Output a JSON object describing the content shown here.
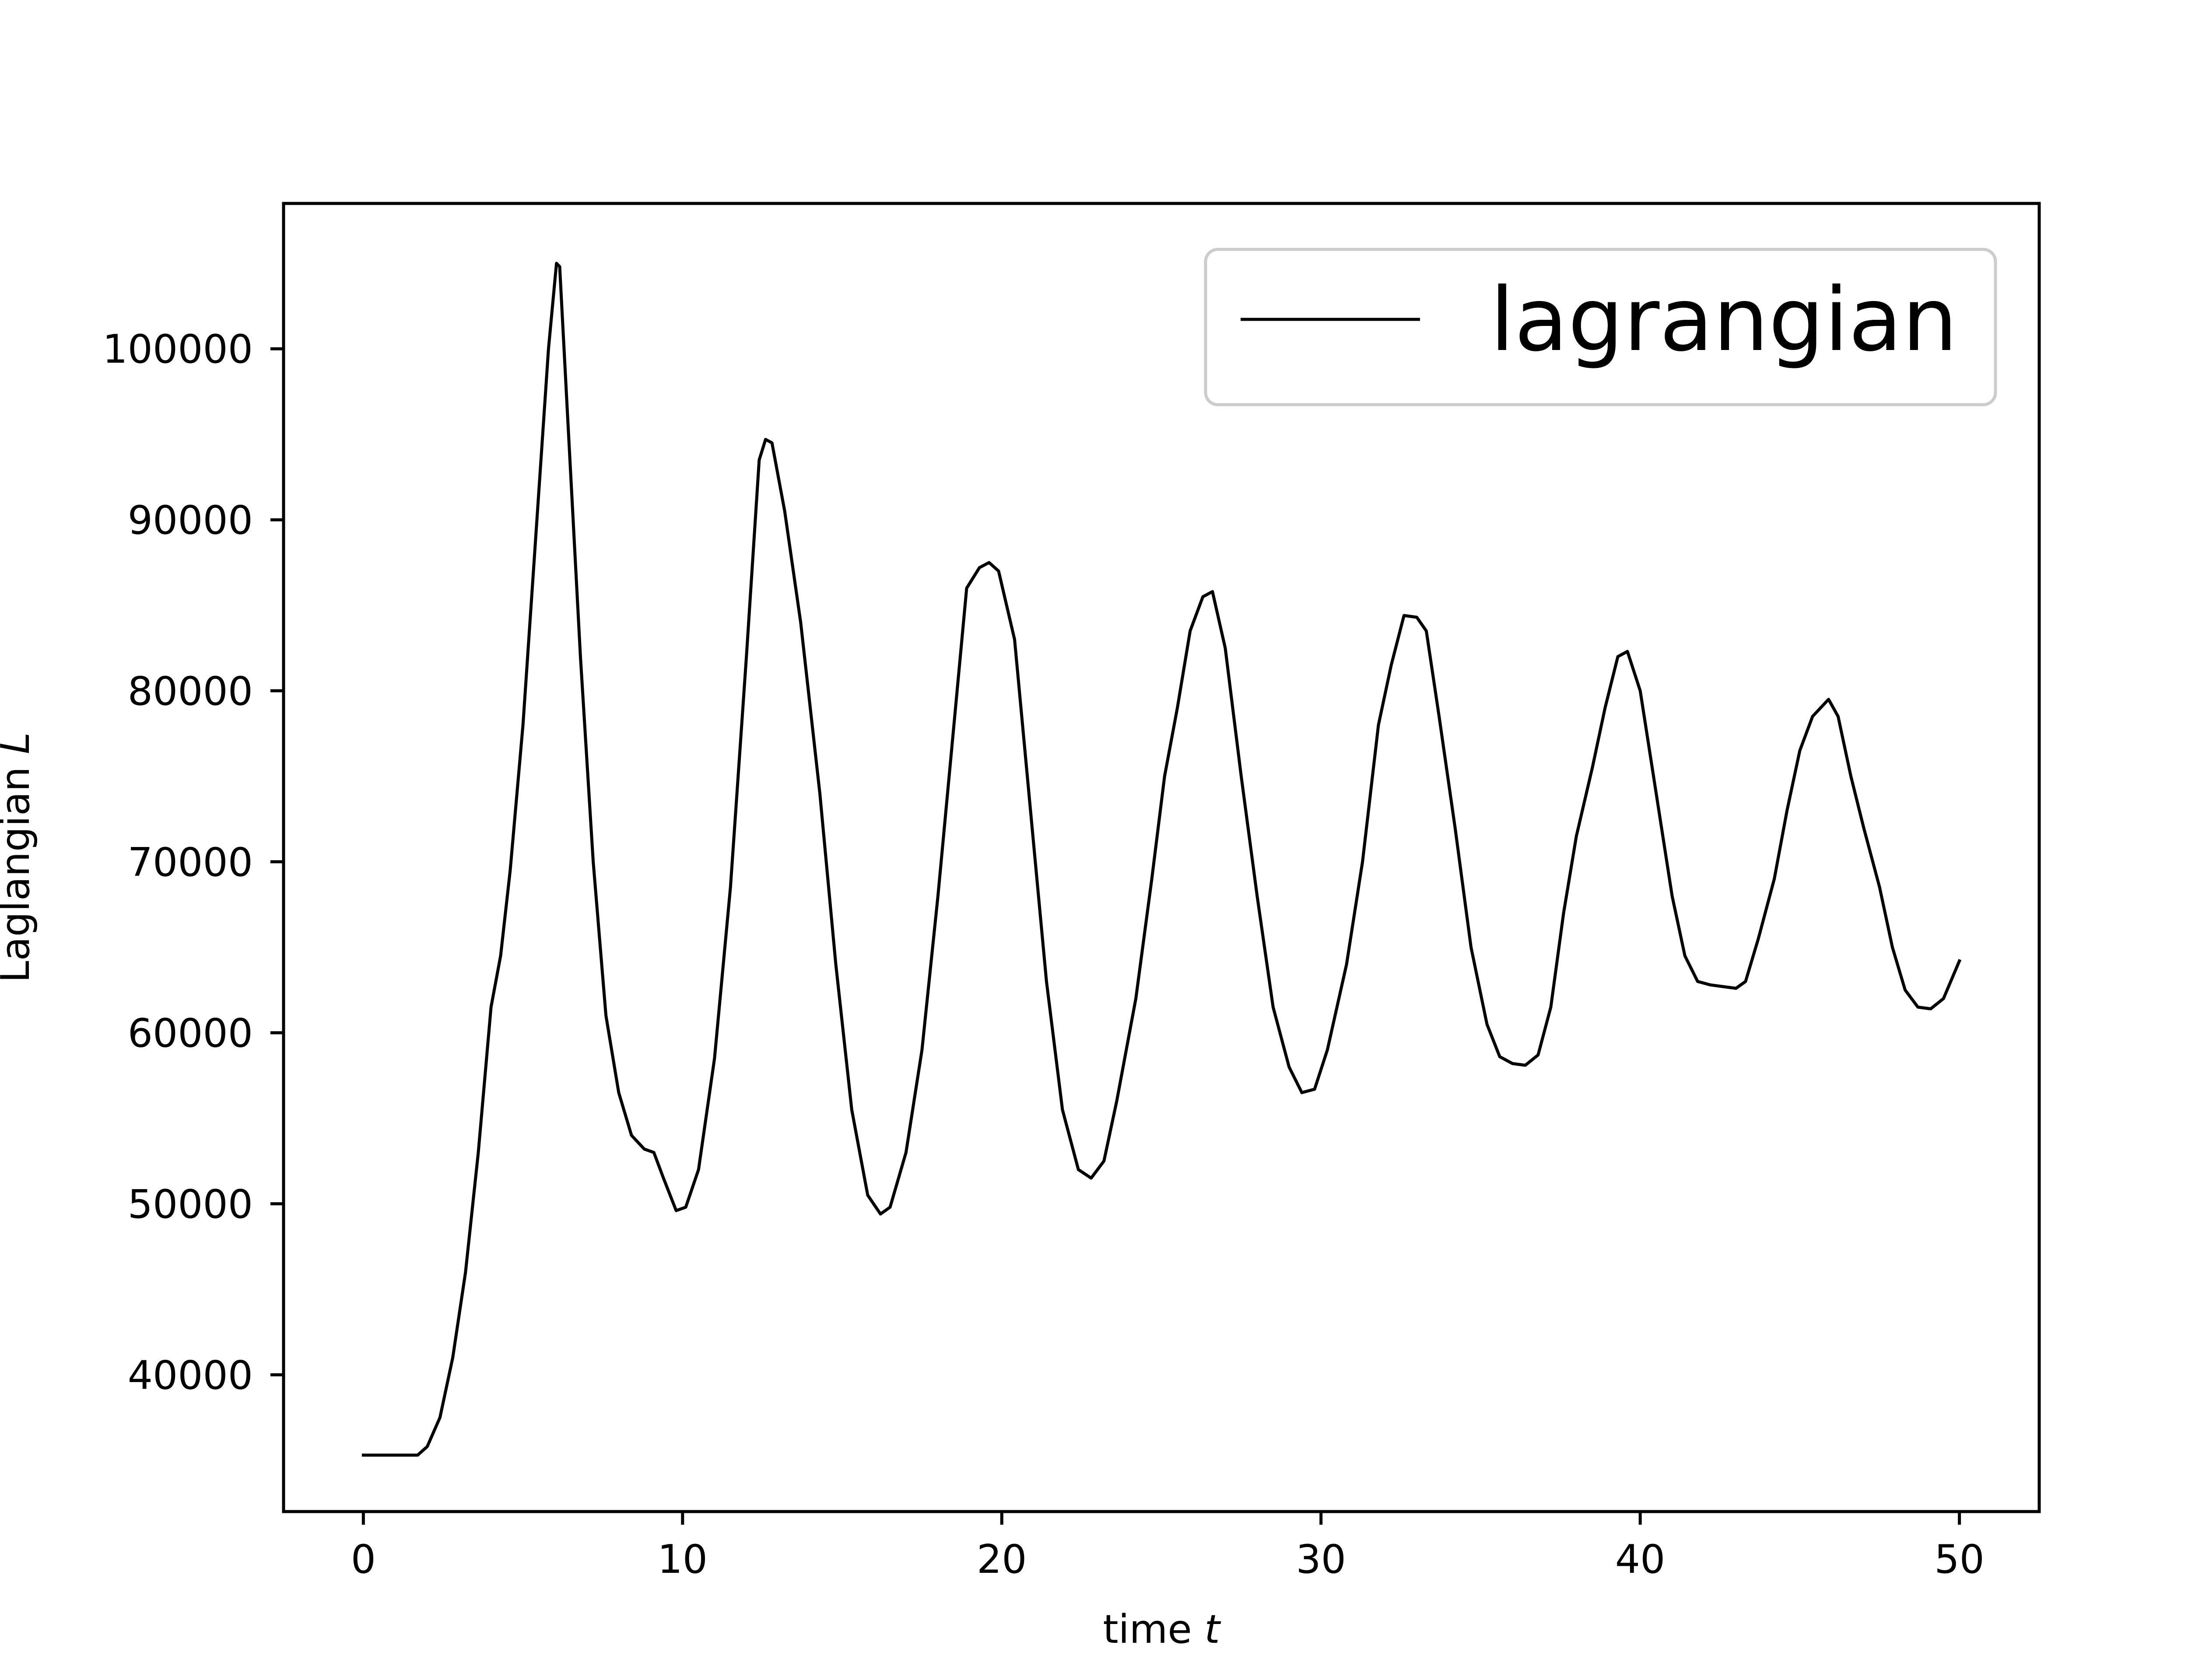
{
  "chart_data": {
    "type": "line",
    "title": "",
    "xlabel": "time",
    "xlabel_var": "t",
    "ylabel": "Laglangian",
    "ylabel_var": "L",
    "xlim": [
      -2.5,
      52.5
    ],
    "ylim": [
      32000,
      108500
    ],
    "xticks": [
      0,
      10,
      20,
      30,
      40,
      50
    ],
    "yticks": [
      40000,
      50000,
      60000,
      70000,
      80000,
      90000,
      100000
    ],
    "grid": false,
    "legend": {
      "position": "top-right",
      "entries": [
        "lagrangian"
      ]
    },
    "series": [
      {
        "name": "lagrangian",
        "color": "#000000",
        "points": [
          [
            0.0,
            35300
          ],
          [
            1.7,
            35300
          ],
          [
            2.0,
            35800
          ],
          [
            2.4,
            37500
          ],
          [
            2.8,
            41000
          ],
          [
            3.2,
            46000
          ],
          [
            3.6,
            53000
          ],
          [
            4.0,
            61500
          ],
          [
            4.3,
            64500
          ],
          [
            4.6,
            69500
          ],
          [
            5.0,
            78000
          ],
          [
            5.4,
            89000
          ],
          [
            5.8,
            100000
          ],
          [
            6.05,
            105000
          ],
          [
            6.15,
            104800
          ],
          [
            6.4,
            96000
          ],
          [
            6.8,
            82000
          ],
          [
            7.2,
            70000
          ],
          [
            7.6,
            61000
          ],
          [
            8.0,
            56500
          ],
          [
            8.4,
            54000
          ],
          [
            8.8,
            53200
          ],
          [
            9.1,
            53000
          ],
          [
            9.4,
            51500
          ],
          [
            9.8,
            49600
          ],
          [
            10.1,
            49800
          ],
          [
            10.5,
            52000
          ],
          [
            11.0,
            58500
          ],
          [
            11.5,
            68500
          ],
          [
            12.0,
            82000
          ],
          [
            12.4,
            93500
          ],
          [
            12.6,
            94700
          ],
          [
            12.8,
            94500
          ],
          [
            13.2,
            90500
          ],
          [
            13.7,
            84000
          ],
          [
            14.3,
            74000
          ],
          [
            14.8,
            64000
          ],
          [
            15.3,
            55500
          ],
          [
            15.8,
            50500
          ],
          [
            16.2,
            49400
          ],
          [
            16.5,
            49800
          ],
          [
            17.0,
            53000
          ],
          [
            17.5,
            59000
          ],
          [
            18.0,
            68000
          ],
          [
            18.5,
            78000
          ],
          [
            18.9,
            86000
          ],
          [
            19.3,
            87200
          ],
          [
            19.6,
            87500
          ],
          [
            19.9,
            87000
          ],
          [
            20.4,
            83000
          ],
          [
            20.9,
            73000
          ],
          [
            21.4,
            63000
          ],
          [
            21.9,
            55500
          ],
          [
            22.4,
            52000
          ],
          [
            22.8,
            51500
          ],
          [
            23.2,
            52500
          ],
          [
            23.6,
            56000
          ],
          [
            24.2,
            62000
          ],
          [
            24.7,
            69000
          ],
          [
            25.1,
            75000
          ],
          [
            25.5,
            79000
          ],
          [
            25.9,
            83500
          ],
          [
            26.3,
            85500
          ],
          [
            26.6,
            85800
          ],
          [
            27.0,
            82500
          ],
          [
            27.5,
            75000
          ],
          [
            28.0,
            68000
          ],
          [
            28.5,
            61500
          ],
          [
            29.0,
            58000
          ],
          [
            29.4,
            56500
          ],
          [
            29.8,
            56700
          ],
          [
            30.2,
            59000
          ],
          [
            30.8,
            64000
          ],
          [
            31.3,
            70000
          ],
          [
            31.8,
            78000
          ],
          [
            32.2,
            81500
          ],
          [
            32.6,
            84400
          ],
          [
            33.0,
            84300
          ],
          [
            33.3,
            83500
          ],
          [
            33.7,
            78500
          ],
          [
            34.2,
            72000
          ],
          [
            34.7,
            65000
          ],
          [
            35.2,
            60500
          ],
          [
            35.6,
            58600
          ],
          [
            36.0,
            58200
          ],
          [
            36.4,
            58100
          ],
          [
            36.8,
            58700
          ],
          [
            37.2,
            61500
          ],
          [
            37.6,
            67000
          ],
          [
            38.0,
            71500
          ],
          [
            38.5,
            75500
          ],
          [
            38.9,
            79000
          ],
          [
            39.3,
            82000
          ],
          [
            39.6,
            82300
          ],
          [
            40.0,
            80000
          ],
          [
            40.5,
            74000
          ],
          [
            41.0,
            68000
          ],
          [
            41.4,
            64500
          ],
          [
            41.8,
            63000
          ],
          [
            42.2,
            62800
          ],
          [
            42.6,
            62700
          ],
          [
            43.0,
            62600
          ],
          [
            43.3,
            63000
          ],
          [
            43.7,
            65500
          ],
          [
            44.2,
            69000
          ],
          [
            44.6,
            73000
          ],
          [
            45.0,
            76500
          ],
          [
            45.4,
            78500
          ],
          [
            45.9,
            79500
          ],
          [
            46.2,
            78500
          ],
          [
            46.6,
            75000
          ],
          [
            47.0,
            72000
          ],
          [
            47.5,
            68500
          ],
          [
            47.9,
            65000
          ],
          [
            48.3,
            62500
          ],
          [
            48.7,
            61500
          ],
          [
            49.1,
            61400
          ],
          [
            49.5,
            62000
          ],
          [
            50.0,
            64200
          ]
        ]
      }
    ]
  }
}
